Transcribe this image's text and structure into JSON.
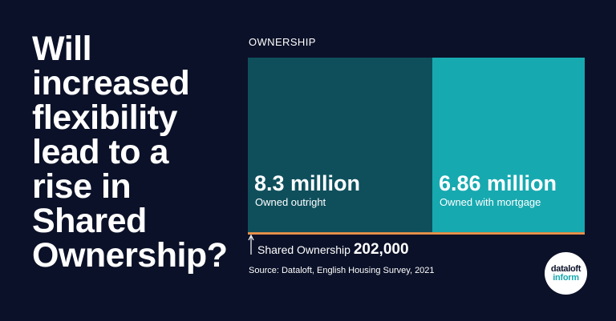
{
  "headline": "Will increased flexibility lead to a rise in Shared Ownership?",
  "section_label": "OWNERSHIP",
  "source": "Source: Dataloft, English Housing Survey, 2021",
  "logo": {
    "line1": "dataloft",
    "line2": "inform"
  },
  "colors": {
    "background": "#0b1128",
    "owned_outright": "#0f4f5c",
    "owned_with_mortgage": "#17a9b0",
    "shared_ownership": "#e8924a",
    "text": "#ffffff"
  },
  "chart_data": {
    "type": "bar",
    "units": "households",
    "segments": [
      {
        "name": "Owned outright",
        "value_label": "8.3 million",
        "value": 8300000,
        "color": "#0f4f5c"
      },
      {
        "name": "Owned with mortgage",
        "value_label": "6.86 million",
        "value": 6860000,
        "color": "#17a9b0"
      },
      {
        "name": "Shared Ownership",
        "value_label": "202,000",
        "value": 202000,
        "color": "#e8924a"
      }
    ]
  }
}
